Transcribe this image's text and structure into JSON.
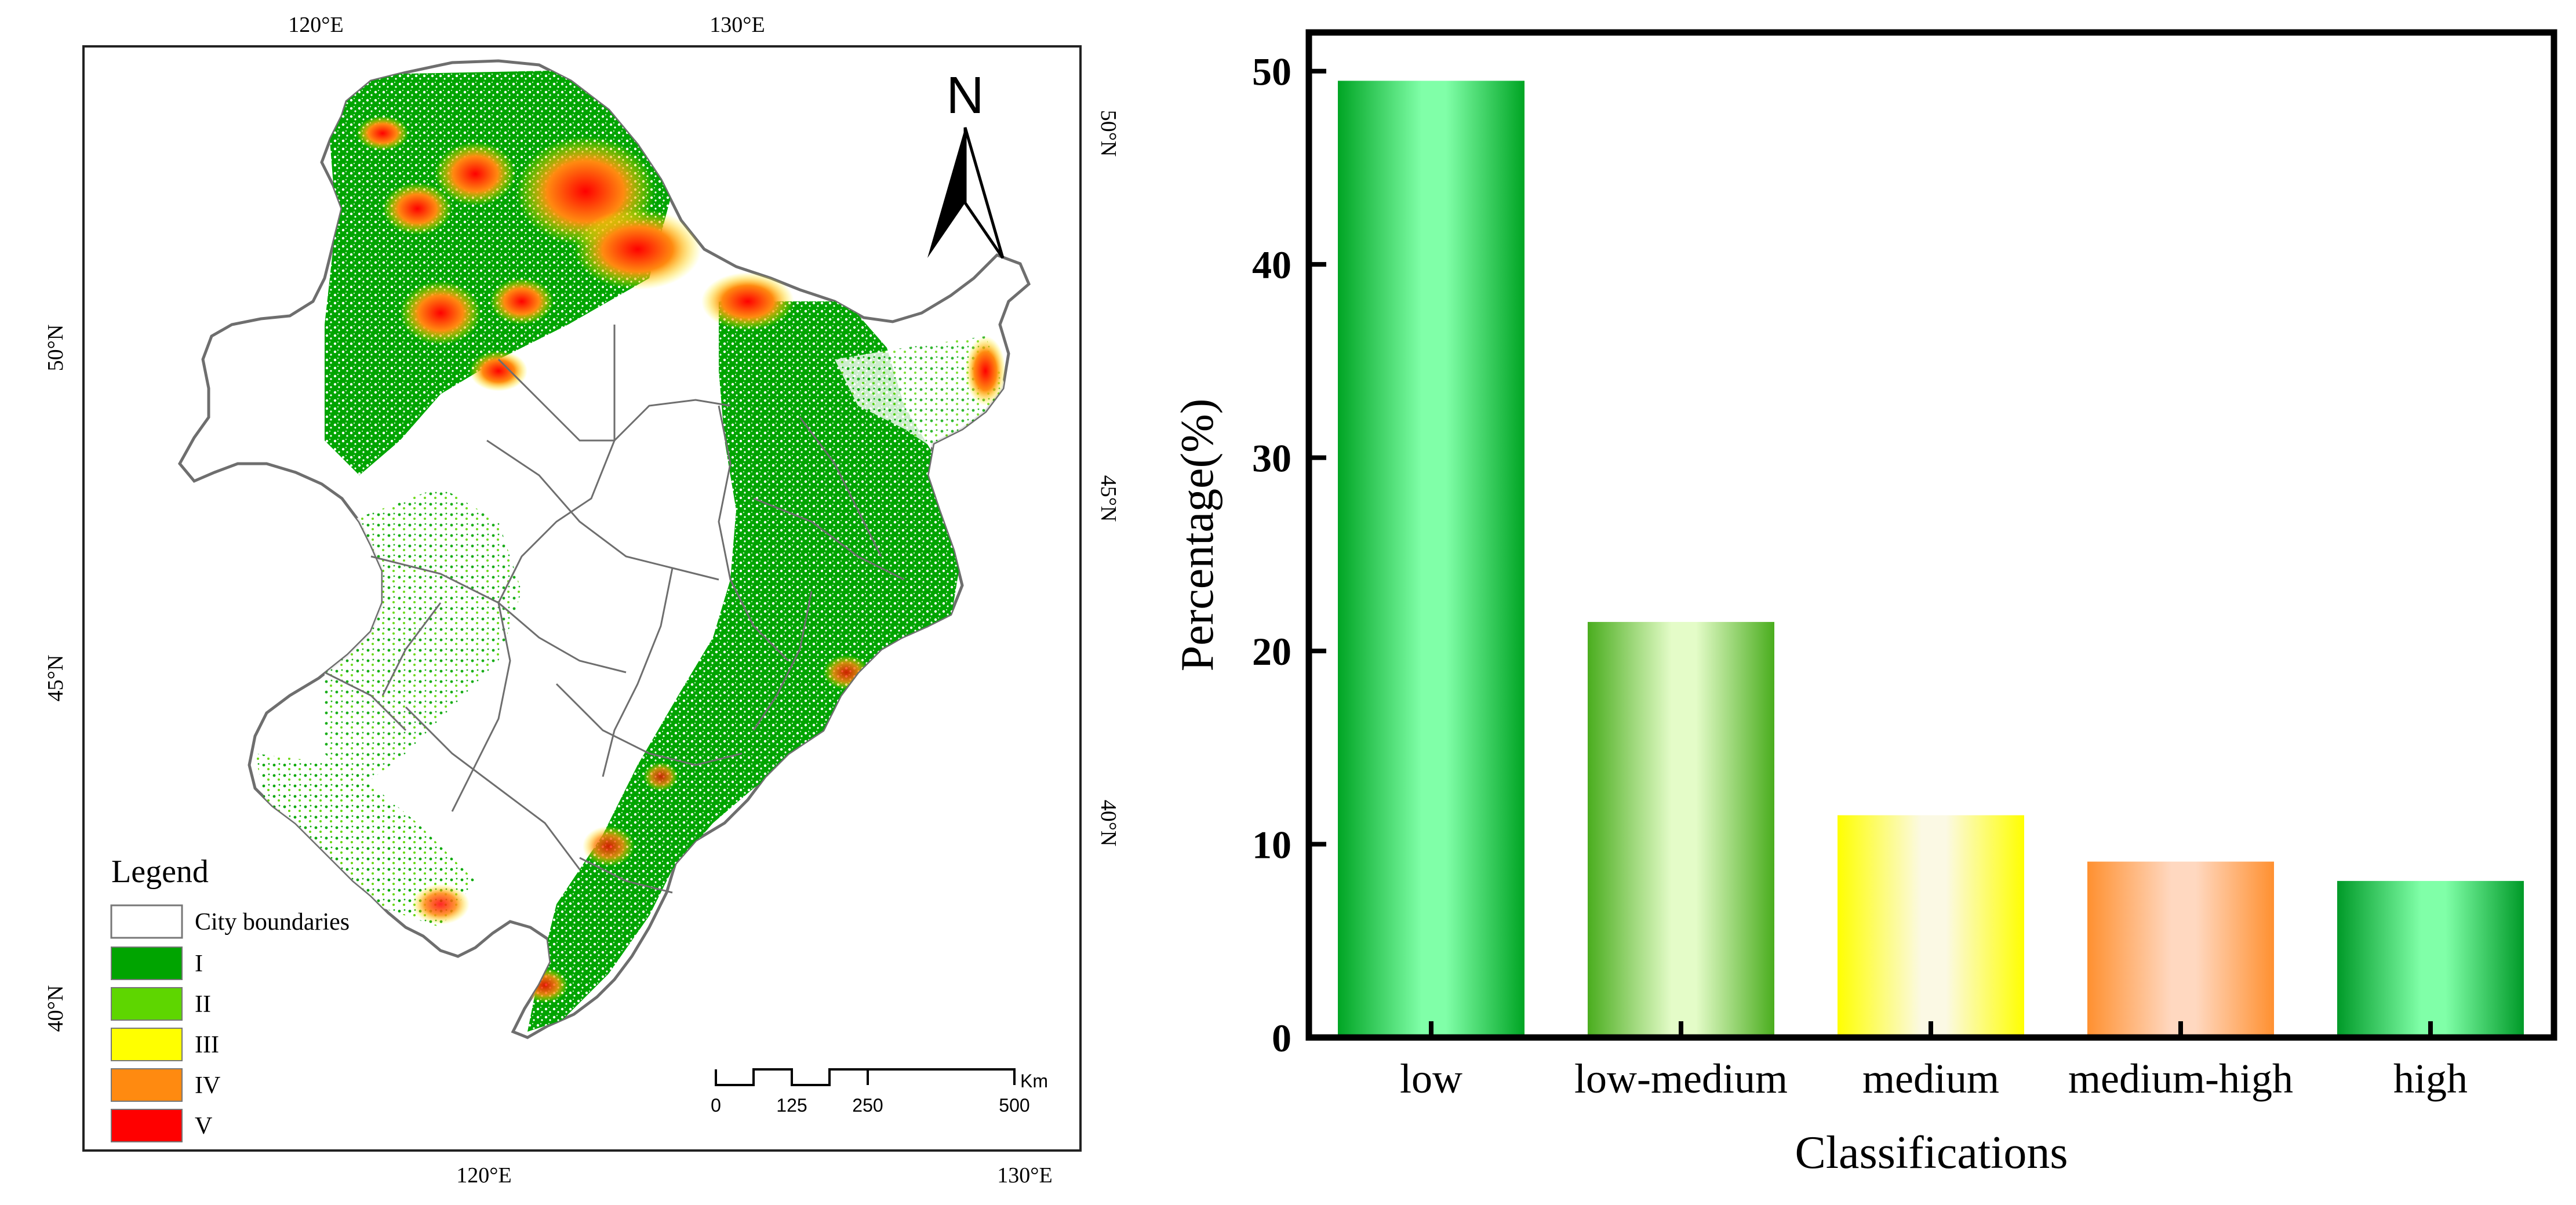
{
  "map": {
    "north_label": "N",
    "coord_labels": {
      "top_lon_120": "120°E",
      "top_lon_130": "130°E",
      "bottom_lon_120": "120°E",
      "bottom_lon_130": "130°E",
      "left_lat_50": "50°N",
      "left_lat_45": "45°N",
      "left_lat_40": "40°N",
      "right_lat_50": "50°N",
      "right_lat_45": "45°N",
      "right_lat_40": "40°N"
    },
    "legend": {
      "title": "Legend",
      "items": [
        {
          "label": "City boundaries",
          "color": "#ffffff"
        },
        {
          "label": "I",
          "color": "#00a400"
        },
        {
          "label": "II",
          "color": "#5ed600"
        },
        {
          "label": "III",
          "color": "#ffff00"
        },
        {
          "label": "IV",
          "color": "#ff8a10"
        },
        {
          "label": "V",
          "color": "#ff0000"
        }
      ]
    },
    "scale_bar": {
      "ticks": [
        "0",
        "125",
        "250",
        "500"
      ],
      "unit": "Km"
    }
  },
  "chart_data": {
    "type": "bar",
    "title": "",
    "xlabel": "Classifications",
    "ylabel": "Percentage(%)",
    "ylim": [
      0,
      52
    ],
    "yticks": [
      0,
      10,
      20,
      30,
      40,
      50
    ],
    "categories": [
      "low",
      "low-medium",
      "medium",
      "medium-high",
      "high"
    ],
    "values": [
      49.5,
      21.5,
      11.5,
      9.1,
      8.1
    ],
    "bar_colors": [
      {
        "edge": "#00a524",
        "center": "#80ffa8"
      },
      {
        "edge": "#4aad1e",
        "center": "#e4fcc8"
      },
      {
        "edge": "#ffff00",
        "center": "#fbf9e4"
      },
      {
        "edge": "#ff9030",
        "center": "#ffd8c0"
      },
      {
        "edge": "#009a28",
        "center": "#80ffa8"
      }
    ]
  }
}
